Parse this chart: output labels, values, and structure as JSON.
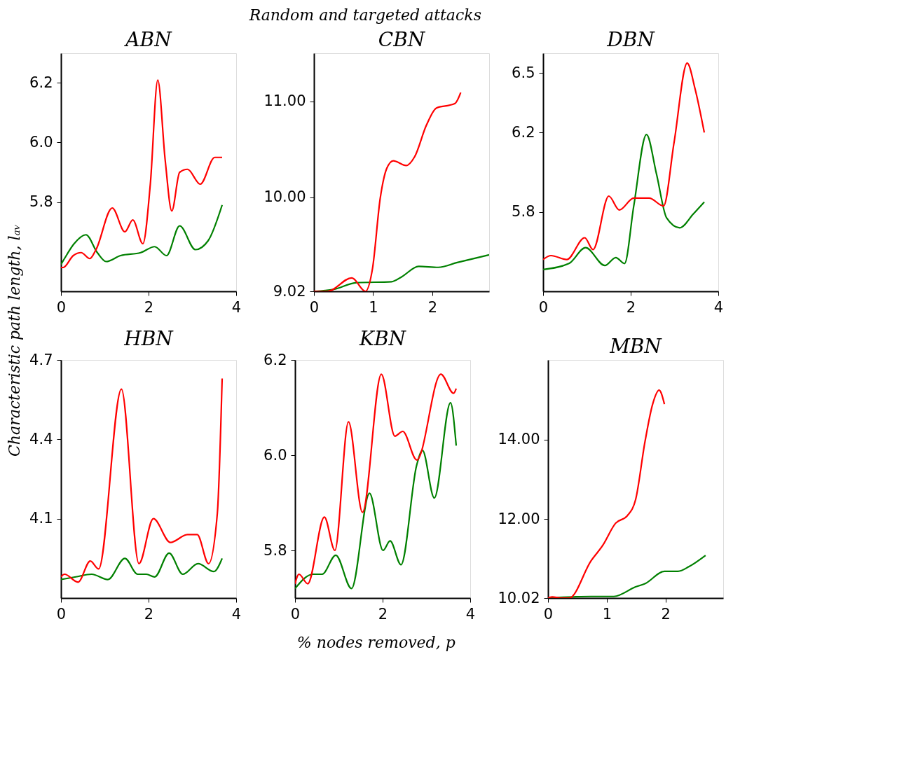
{
  "chart_data": [
    {
      "type": "line",
      "title": "ABN",
      "annotations": [
        "Random and targeted attacks"
      ],
      "ylabel": "Characteristic path length, lₐᵥ",
      "grid": false,
      "xlim": [
        0,
        4
      ],
      "xticks": [
        0,
        2,
        4
      ],
      "ylim": [
        5.5,
        6.3
      ],
      "yticks": [
        5.8,
        {
          "value": 6,
          "label": "6.0"
        },
        6.2
      ],
      "series": [
        {
          "color": "#ff0000",
          "x": [
            0,
            0.05,
            0.28,
            0.46,
            0.66,
            0.8,
            1.17,
            1.46,
            1.64,
            1.87,
            2.04,
            2.21,
            2.38,
            2.53,
            2.71,
            2.89,
            3.18,
            3.51,
            3.68
          ],
          "values": [
            5.58,
            5.58,
            5.62,
            5.63,
            5.61,
            5.64,
            5.78,
            5.7,
            5.74,
            5.66,
            5.86,
            6.21,
            5.94,
            5.77,
            5.9,
            5.91,
            5.86,
            5.95,
            5.95
          ]
        },
        {
          "color": "#008000",
          "x": [
            0,
            0.08,
            0.3,
            0.57,
            0.83,
            1.03,
            1.36,
            1.82,
            2.14,
            2.41,
            2.71,
            3.07,
            3.36,
            3.68
          ],
          "values": [
            5.59,
            5.61,
            5.66,
            5.69,
            5.63,
            5.6,
            5.62,
            5.63,
            5.65,
            5.62,
            5.72,
            5.64,
            5.67,
            5.79
          ]
        }
      ]
    },
    {
      "type": "line",
      "title": "CBN",
      "grid": false,
      "xlim": [
        0,
        2.96
      ],
      "xticks": [
        0,
        1,
        2
      ],
      "ylim": [
        9.02,
        11.5
      ],
      "yticks": [
        9.02,
        {
          "value": 10,
          "label": "10.00"
        },
        {
          "value": 11,
          "label": "11.00"
        }
      ],
      "series": [
        {
          "color": "#ff0000",
          "x": [
            0,
            0.23,
            0.64,
            0.87,
            0.99,
            1.12,
            1.23,
            1.34,
            1.56,
            1.7,
            1.9,
            2.07,
            2.3,
            2.39,
            2.48
          ],
          "values": [
            9.02,
            9.02,
            9.16,
            9.02,
            9.26,
            9.99,
            10.3,
            10.38,
            10.33,
            10.42,
            10.75,
            10.93,
            10.96,
            10.98,
            11.09
          ]
        },
        {
          "color": "#008000",
          "x": [
            0,
            0.33,
            0.72,
            1.31,
            1.48,
            1.77,
            2.1,
            2.42,
            2.96
          ],
          "values": [
            9.02,
            9.04,
            9.11,
            9.12,
            9.17,
            9.28,
            9.27,
            9.32,
            9.4
          ]
        }
      ]
    },
    {
      "type": "line",
      "title": "DBN",
      "grid": false,
      "xlim": [
        0,
        4
      ],
      "xticks": [
        0,
        2,
        4
      ],
      "ylim": [
        5.4,
        6.6
      ],
      "yticks": [
        5.8,
        6.2,
        6.5
      ],
      "series": [
        {
          "color": "#ff0000",
          "x": [
            0,
            0.18,
            0.54,
            0.95,
            1.14,
            1.5,
            1.74,
            2.07,
            2.42,
            2.75,
            2.99,
            3.29,
            3.47,
            3.68
          ],
          "values": [
            5.56,
            5.58,
            5.56,
            5.67,
            5.61,
            5.88,
            5.81,
            5.87,
            5.87,
            5.83,
            6.15,
            6.55,
            6.42,
            6.2
          ]
        },
        {
          "color": "#008000",
          "x": [
            0,
            0.59,
            0.97,
            1.41,
            1.66,
            1.86,
            2.07,
            2.36,
            2.59,
            2.82,
            3.12,
            3.43,
            3.68
          ],
          "values": [
            5.51,
            5.54,
            5.62,
            5.53,
            5.57,
            5.54,
            5.83,
            6.19,
            5.99,
            5.77,
            5.72,
            5.79,
            5.85
          ]
        }
      ]
    },
    {
      "type": "line",
      "title": "HBN",
      "grid": false,
      "xlim": [
        0,
        4
      ],
      "xticks": [
        0,
        2,
        4
      ],
      "ylim": [
        3.8,
        4.7
      ],
      "yticks": [
        4.1,
        4.4,
        4.7
      ],
      "series": [
        {
          "color": "#ff0000",
          "x": [
            0,
            0.08,
            0.39,
            0.67,
            0.86,
            1.38,
            1.78,
            2.11,
            2.5,
            2.89,
            3.11,
            3.37,
            3.57,
            3.68
          ],
          "values": [
            3.88,
            3.89,
            3.86,
            3.94,
            3.91,
            4.59,
            3.93,
            4.1,
            4.01,
            4.04,
            4.04,
            3.93,
            4.12,
            4.63
          ]
        },
        {
          "color": "#008000",
          "x": [
            0,
            0.34,
            0.7,
            1.07,
            1.46,
            1.75,
            1.95,
            2.14,
            2.47,
            2.78,
            3.13,
            3.49,
            3.68
          ],
          "values": [
            3.87,
            3.88,
            3.89,
            3.87,
            3.95,
            3.89,
            3.89,
            3.88,
            3.97,
            3.89,
            3.93,
            3.9,
            3.95
          ]
        }
      ]
    },
    {
      "type": "line",
      "title": "KBN",
      "xlabel": "% nodes removed, p",
      "grid": false,
      "xlim": [
        0,
        4
      ],
      "xticks": [
        0,
        2,
        4
      ],
      "ylim": [
        5.7,
        6.2
      ],
      "yticks": [
        5.8,
        {
          "value": 6,
          "label": "6.0"
        },
        6.2
      ],
      "series": [
        {
          "color": "#ff0000",
          "x": [
            0,
            0.09,
            0.29,
            0.67,
            0.91,
            1.22,
            1.54,
            1.97,
            2.28,
            2.46,
            2.78,
            3.33,
            3.62,
            3.68
          ],
          "values": [
            5.73,
            5.75,
            5.73,
            5.87,
            5.8,
            6.07,
            5.88,
            6.17,
            6.04,
            6.05,
            5.99,
            6.17,
            6.13,
            6.14
          ]
        },
        {
          "color": "#008000",
          "x": [
            0,
            0.41,
            0.62,
            0.93,
            1.29,
            1.7,
            2.01,
            2.17,
            2.42,
            2.78,
            2.91,
            3.18,
            3.55,
            3.68
          ],
          "values": [
            5.72,
            5.75,
            5.75,
            5.79,
            5.72,
            5.92,
            5.8,
            5.82,
            5.77,
            5.98,
            6.01,
            5.91,
            6.11,
            6.02
          ]
        }
      ]
    },
    {
      "type": "line",
      "title": "MBN",
      "grid": false,
      "xlim": [
        0,
        2.98
      ],
      "xticks": [
        0,
        1,
        2
      ],
      "ylim": [
        10.02,
        16
      ],
      "yticks": [
        10.02,
        {
          "value": 12,
          "label": "12.00"
        },
        {
          "value": 14,
          "label": "14.00"
        }
      ],
      "series": [
        {
          "color": "#ff0000",
          "x": [
            0,
            0.07,
            0.21,
            0.36,
            0.73,
            0.93,
            1.15,
            1.35,
            1.49,
            1.65,
            1.78,
            1.89,
            1.98
          ],
          "values": [
            10.02,
            10.05,
            10.02,
            10.02,
            10.95,
            11.34,
            11.9,
            12.09,
            12.49,
            13.95,
            14.89,
            15.24,
            14.89
          ]
        },
        {
          "color": "#008000",
          "x": [
            0,
            0.44,
            0.73,
            1.12,
            1.49,
            1.65,
            1.98,
            2.21,
            2.4,
            2.68
          ],
          "values": [
            10.02,
            10.05,
            10.06,
            10.06,
            10.3,
            10.38,
            10.69,
            10.69,
            10.81,
            11.09
          ]
        }
      ]
    }
  ]
}
